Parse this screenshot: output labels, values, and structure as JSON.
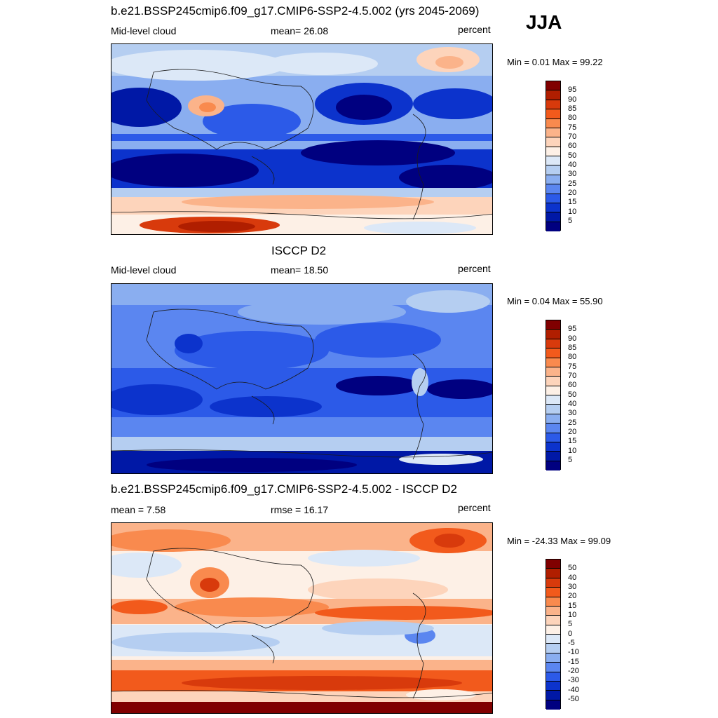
{
  "season": "JJA",
  "panels": [
    {
      "title": "b.e21.BSSP245cmip6.f09_g17.CMIP6-SSP2-4.5.002 (yrs 2045-2069)",
      "left_label": "Mid-level cloud",
      "center_label": "mean=  26.08",
      "right_label": "percent",
      "minmax": "Min =   0.01 Max =  99.22",
      "colorbar_ticks": [
        "95",
        "90",
        "85",
        "80",
        "75",
        "70",
        "60",
        "50",
        "40",
        "30",
        "25",
        "20",
        "15",
        "10",
        "5"
      ]
    },
    {
      "title": "ISCCP D2",
      "left_label": "Mid-level cloud",
      "center_label": "mean=  18.50",
      "right_label": "percent",
      "minmax": "Min =   0.04 Max =  55.90",
      "colorbar_ticks": [
        "95",
        "90",
        "85",
        "80",
        "75",
        "70",
        "60",
        "50",
        "40",
        "30",
        "25",
        "20",
        "15",
        "10",
        "5"
      ]
    },
    {
      "title": "b.e21.BSSP245cmip6.f09_g17.CMIP6-SSP2-4.5.002 - ISCCP D2",
      "left_label": "mean =   7.58",
      "center_label": "rmse =  16.17",
      "right_label": "percent",
      "minmax": "Min = -24.33 Max =  99.09",
      "colorbar_ticks": [
        "50",
        "40",
        "30",
        "20",
        "15",
        "10",
        "5",
        "0",
        "-5",
        "-10",
        "-15",
        "-20",
        "-30",
        "-40",
        "-50"
      ]
    }
  ],
  "colors": {
    "colorbar_scale": [
      "#800000",
      "#b01e00",
      "#d83a0c",
      "#f25a1c",
      "#f98a4e",
      "#fbb38a",
      "#fdd4bb",
      "#fdf0e6",
      "#dce8f7",
      "#b5cef1",
      "#8aaef0",
      "#5b86f0",
      "#2c5ae8",
      "#0c33cc",
      "#0018a6",
      "#000080"
    ],
    "land_outline": "#1a1a1a"
  }
}
